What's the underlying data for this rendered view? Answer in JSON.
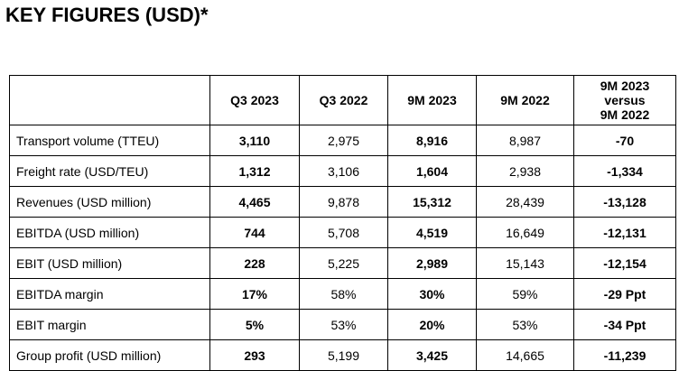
{
  "title": "KEY FIGURES (USD)*",
  "table": {
    "headers": [
      "",
      "Q3 2023",
      "Q3 2022",
      "9M 2023",
      "9M 2022",
      [
        "9M 2023",
        "versus",
        "9M 2022"
      ]
    ],
    "rows": [
      [
        "Transport volume (TTEU)",
        "3,110",
        "2,975",
        "8,916",
        "8,987",
        "-70"
      ],
      [
        "Freight rate (USD/TEU)",
        "1,312",
        "3,106",
        "1,604",
        "2,938",
        "-1,334"
      ],
      [
        "Revenues (USD million)",
        "4,465",
        "9,878",
        "15,312",
        "28,439",
        "-13,128"
      ],
      [
        "EBITDA (USD million)",
        "744",
        "5,708",
        "4,519",
        "16,649",
        "-12,131"
      ],
      [
        "EBIT (USD million)",
        "228",
        "5,225",
        "2,989",
        "15,143",
        "-12,154"
      ],
      [
        "EBITDA margin",
        "17%",
        "58%",
        "30%",
        "59%",
        "-29 Ppt"
      ],
      [
        "EBIT margin",
        "5%",
        "53%",
        "20%",
        "53%",
        "-34 Ppt"
      ],
      [
        "Group profit (USD million)",
        "293",
        "5,199",
        "3,425",
        "14,665",
        "-11,239"
      ]
    ]
  }
}
